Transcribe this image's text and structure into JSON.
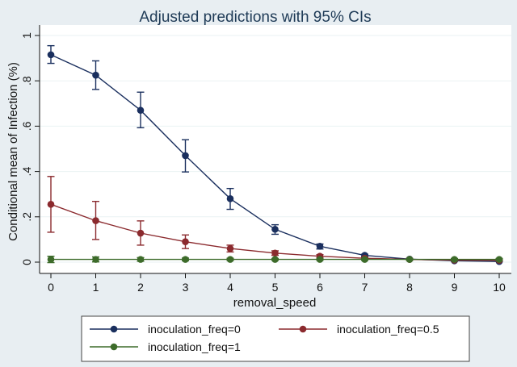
{
  "chart_data": {
    "type": "line",
    "title": "Adjusted predictions with 95% CIs",
    "xlabel": "removal_speed",
    "ylabel": "Conditional mean of Infection (%)",
    "x": [
      0,
      1,
      2,
      3,
      4,
      5,
      6,
      7,
      8,
      9,
      10
    ],
    "x_ticks": [
      "0",
      "1",
      "2",
      "3",
      "4",
      "5",
      "6",
      "7",
      "8",
      "9",
      "10"
    ],
    "xlim": [
      0,
      10
    ],
    "ylim": [
      0,
      1
    ],
    "y_ticks": [
      {
        "value": 0,
        "label": "0"
      },
      {
        "value": 0.2,
        "label": ".2"
      },
      {
        "value": 0.4,
        "label": ".4"
      },
      {
        "value": 0.6,
        "label": ".6"
      },
      {
        "value": 0.8,
        "label": ".8"
      },
      {
        "value": 1,
        "label": "1"
      }
    ],
    "grid": "horizontal",
    "legend_position": "bottom",
    "series": [
      {
        "name": "inoculation_freq=0",
        "color": "#1a2f5e",
        "values": [
          0.915,
          0.825,
          0.67,
          0.47,
          0.28,
          0.145,
          0.07,
          0.03,
          0.013,
          0.006,
          0.003
        ],
        "ci_low": [
          0.877,
          0.762,
          0.593,
          0.398,
          0.233,
          0.123,
          0.058,
          0.025,
          0.01,
          0.004,
          0.002
        ],
        "ci_high": [
          0.955,
          0.888,
          0.75,
          0.54,
          0.325,
          0.165,
          0.08,
          0.035,
          0.016,
          0.008,
          0.004
        ]
      },
      {
        "name": "inoculation_freq=0.5",
        "color": "#8b2a2e",
        "values": [
          0.255,
          0.183,
          0.128,
          0.09,
          0.06,
          0.04,
          0.026,
          0.017,
          0.012,
          0.009,
          0.008
        ],
        "ci_low": [
          0.132,
          0.1,
          0.075,
          0.06,
          0.045,
          0.03,
          0.019,
          0.012,
          0.009,
          0.006,
          0.005
        ],
        "ci_high": [
          0.378,
          0.268,
          0.182,
          0.12,
          0.075,
          0.05,
          0.033,
          0.022,
          0.016,
          0.012,
          0.011
        ]
      },
      {
        "name": "inoculation_freq=1",
        "color": "#3d6b2a",
        "values": [
          0.012,
          0.012,
          0.012,
          0.012,
          0.012,
          0.012,
          0.012,
          0.012,
          0.012,
          0.012,
          0.012
        ],
        "ci_low": [
          -0.002,
          0.001,
          0.004,
          0.006,
          0.007,
          0.008,
          0.008,
          0.008,
          0.008,
          0.008,
          0.008
        ],
        "ci_high": [
          0.026,
          0.023,
          0.02,
          0.018,
          0.017,
          0.016,
          0.016,
          0.016,
          0.016,
          0.016,
          0.016
        ]
      }
    ]
  }
}
